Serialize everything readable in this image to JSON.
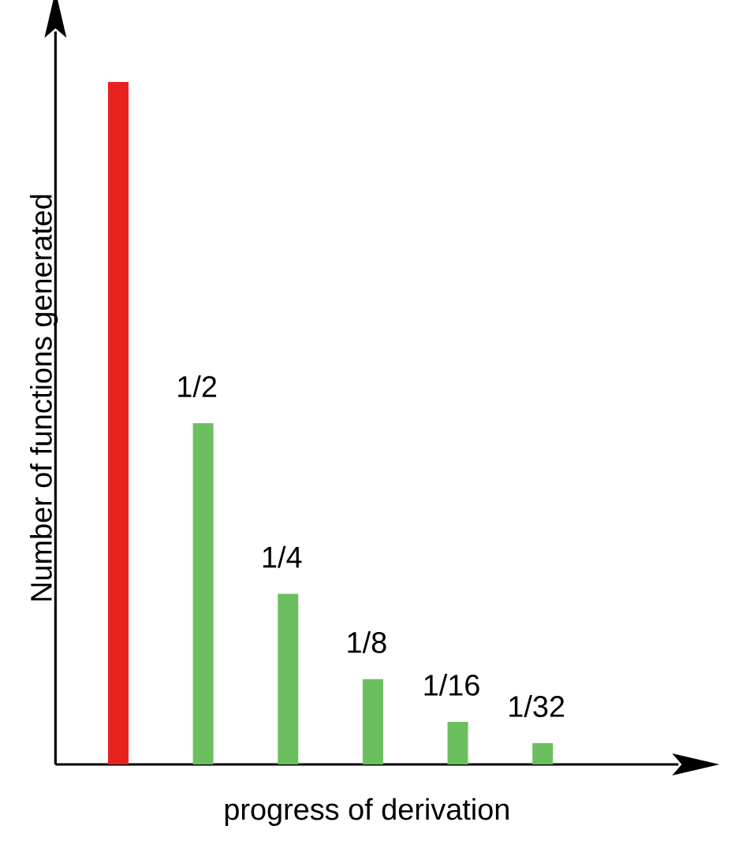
{
  "chart_data": {
    "type": "bar",
    "ylim": [
      0,
      1.074
    ],
    "tick_labels": false,
    "xlabel": "progress of derivation",
    "ylabel": "Number of functions generated",
    "categories": [
      null,
      null,
      null,
      null,
      null,
      null
    ],
    "values": [
      1,
      0.5,
      0.25,
      0.125,
      0.0625,
      0.03125
    ],
    "colors": [
      "#e8221f",
      "#6cbf5e",
      "#6cbf5e",
      "#6cbf5e",
      "#6cbf5e",
      "#6cbf5e"
    ],
    "value_labels": [
      null,
      "1/2",
      "1/4",
      "1/8",
      "1/16",
      "1/32"
    ]
  }
}
